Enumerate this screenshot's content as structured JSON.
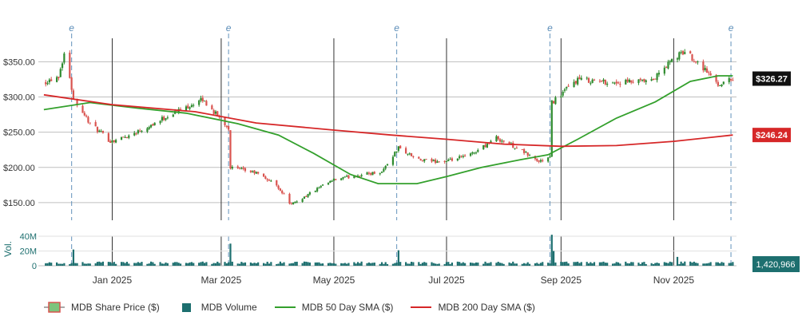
{
  "chart_data": {
    "type": "candlestick",
    "ticker": "MDB",
    "x_tick_labels": [
      "Jan 2025",
      "Mar 2025",
      "May 2025",
      "Jul 2025",
      "Sep 2025",
      "Nov 2025"
    ],
    "price_axis": {
      "ticks": [
        "$150.00",
        "$200.00",
        "$250.00",
        "$300.00",
        "$350.00"
      ],
      "range": [
        125,
        390
      ]
    },
    "volume_axis": {
      "label": "Vol.",
      "ticks": [
        "0",
        "20M",
        "40M"
      ],
      "range": [
        0,
        40000000
      ]
    },
    "event_marker_label": "e",
    "event_markers_at": [
      "2024-12-10",
      "2025-03-05",
      "2025-06-04",
      "2025-08-26",
      "2025-12-02"
    ],
    "close_anchors": [
      [
        "2024-11-26",
        322
      ],
      [
        "2024-12-03",
        330
      ],
      [
        "2024-12-06",
        362
      ],
      [
        "2024-12-11",
        300
      ],
      [
        "2024-12-20",
        262
      ],
      [
        "2024-12-31",
        237
      ],
      [
        "2025-01-10",
        245
      ],
      [
        "2025-01-24",
        263
      ],
      [
        "2025-02-05",
        280
      ],
      [
        "2025-02-19",
        296
      ],
      [
        "2025-03-05",
        256
      ],
      [
        "2025-03-06",
        200
      ],
      [
        "2025-03-20",
        192
      ],
      [
        "2025-03-31",
        175
      ],
      [
        "2025-04-08",
        147
      ],
      [
        "2025-04-21",
        168
      ],
      [
        "2025-05-01",
        182
      ],
      [
        "2025-05-12",
        188
      ],
      [
        "2025-05-27",
        194
      ],
      [
        "2025-06-05",
        228
      ],
      [
        "2025-06-16",
        210
      ],
      [
        "2025-07-01",
        208
      ],
      [
        "2025-07-14",
        218
      ],
      [
        "2025-07-28",
        242
      ],
      [
        "2025-08-08",
        228
      ],
      [
        "2025-08-20",
        208
      ],
      [
        "2025-08-26",
        214
      ],
      [
        "2025-08-27",
        292
      ],
      [
        "2025-09-10",
        325
      ],
      [
        "2025-10-01",
        320
      ],
      [
        "2025-10-20",
        322
      ],
      [
        "2025-10-31",
        352
      ],
      [
        "2025-11-07",
        365
      ],
      [
        "2025-11-17",
        342
      ],
      [
        "2025-11-25",
        318
      ],
      [
        "2025-12-03",
        326
      ]
    ],
    "volume_spikes": [
      [
        "2024-12-11",
        22000000
      ],
      [
        "2025-03-06",
        30000000
      ],
      [
        "2025-06-05",
        21000000
      ],
      [
        "2025-08-27",
        42000000
      ],
      [
        "2025-08-28",
        20000000
      ],
      [
        "2025-11-03",
        12000000
      ]
    ],
    "series": [
      {
        "name": "MDB Share Price ($)",
        "kind": "candles",
        "last_value_label": "$326.27",
        "up_color": "#2e8b2e",
        "down_color": "#d9534f"
      },
      {
        "name": "MDB Volume",
        "kind": "volume",
        "last_value_label": "1,420,966",
        "color": "#1d6f6f"
      },
      {
        "name": "MDB 50 Day SMA ($)",
        "kind": "line",
        "color": "#33a02c",
        "points": [
          [
            "2024-11-25",
            282
          ],
          [
            "2024-12-20",
            292
          ],
          [
            "2025-01-15",
            284
          ],
          [
            "2025-02-10",
            277
          ],
          [
            "2025-03-10",
            262
          ],
          [
            "2025-04-01",
            246
          ],
          [
            "2025-04-20",
            220
          ],
          [
            "2025-05-10",
            190
          ],
          [
            "2025-05-25",
            177
          ],
          [
            "2025-06-15",
            177
          ],
          [
            "2025-07-01",
            187
          ],
          [
            "2025-07-20",
            200
          ],
          [
            "2025-08-10",
            211
          ],
          [
            "2025-08-25",
            218
          ],
          [
            "2025-09-10",
            240
          ],
          [
            "2025-10-01",
            270
          ],
          [
            "2025-10-22",
            293
          ],
          [
            "2025-11-10",
            322
          ],
          [
            "2025-11-25",
            330
          ],
          [
            "2025-12-03",
            330
          ]
        ]
      },
      {
        "name": "MDB 200 Day SMA ($)",
        "kind": "line",
        "color": "#d62728",
        "last_value_label": "$246.24",
        "points": [
          [
            "2024-11-25",
            303
          ],
          [
            "2025-01-01",
            289
          ],
          [
            "2025-02-15",
            279
          ],
          [
            "2025-03-20",
            263
          ],
          [
            "2025-05-01",
            253
          ],
          [
            "2025-06-01",
            246
          ],
          [
            "2025-07-01",
            240
          ],
          [
            "2025-08-01",
            233
          ],
          [
            "2025-09-01",
            230
          ],
          [
            "2025-10-01",
            231
          ],
          [
            "2025-11-01",
            237
          ],
          [
            "2025-12-03",
            246
          ]
        ]
      }
    ],
    "colors": {
      "grid": "#bfbfbf",
      "axis_text": "#333333",
      "volume_axis_text": "#1d6f6f",
      "event_marker": "#5b8db8"
    },
    "legend_placement": "bottom-left"
  },
  "legend": {
    "price": "MDB Share Price ($)",
    "volume": "MDB Volume",
    "sma50": "MDB 50 Day SMA ($)",
    "sma200": "MDB 200 Day SMA ($)"
  }
}
